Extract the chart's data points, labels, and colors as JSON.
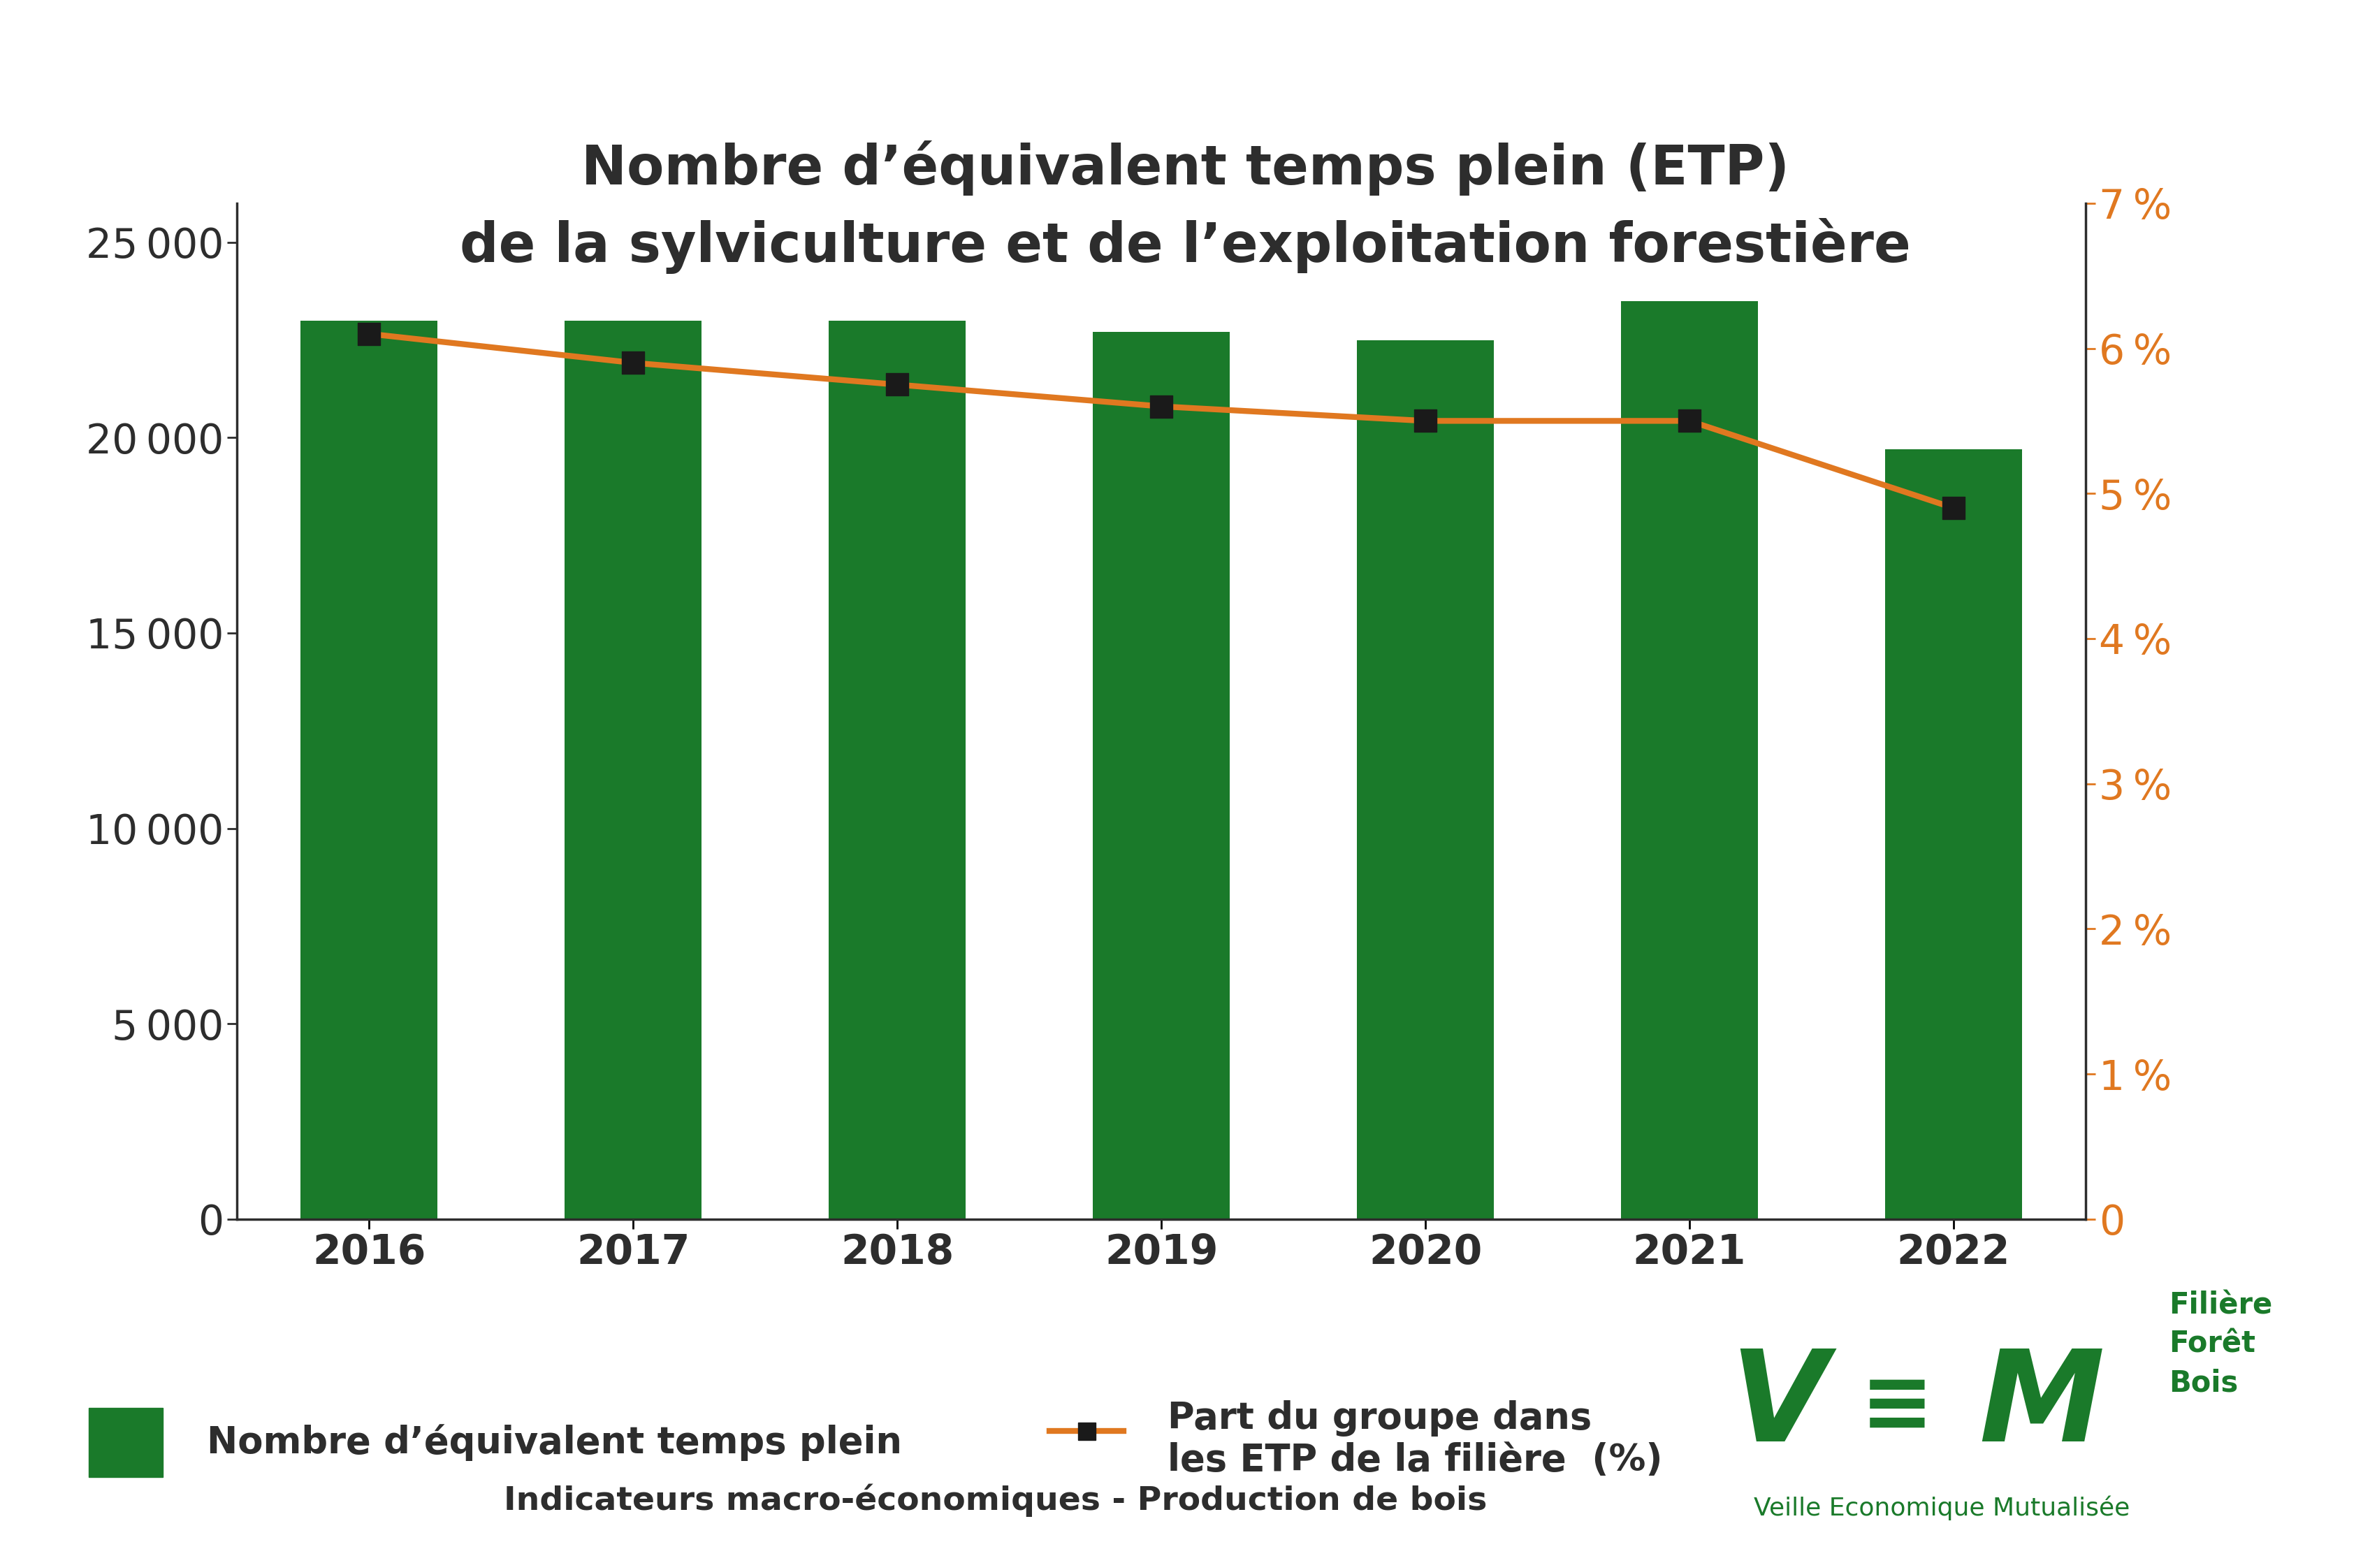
{
  "title_line1": "Nombre d’équivalent temps plein (ETP)",
  "title_line2": "de la sylviculture et de l’exploitation forestière",
  "years": [
    2016,
    2017,
    2018,
    2019,
    2020,
    2021,
    2022
  ],
  "bar_values": [
    23000,
    23000,
    23000,
    22700,
    22500,
    23500,
    19700
  ],
  "line_values": [
    6.1,
    5.9,
    5.75,
    5.6,
    5.5,
    5.5,
    4.9
  ],
  "bar_color": "#1a7a2a",
  "line_color": "#e07820",
  "marker_color": "#1a1a1a",
  "left_ylim": [
    0,
    26000
  ],
  "right_ylim": [
    0,
    7
  ],
  "left_yticks": [
    0,
    5000,
    10000,
    15000,
    20000,
    25000
  ],
  "right_yticks": [
    0,
    1,
    2,
    3,
    4,
    5,
    6,
    7
  ],
  "legend_bar_label": "Nombre d’équivalent temps plein",
  "legend_line_label": "Part du groupe dans\nles ETP de la filière  (%)",
  "footnote": "Indicateurs macro-économiques - Production de bois",
  "title_color": "#2d2d2d",
  "tick_color": "#2d2d2d",
  "background_color": "#ffffff",
  "vem_green": "#1a7a2a",
  "vem_filiere_color": "#1a7a2a"
}
